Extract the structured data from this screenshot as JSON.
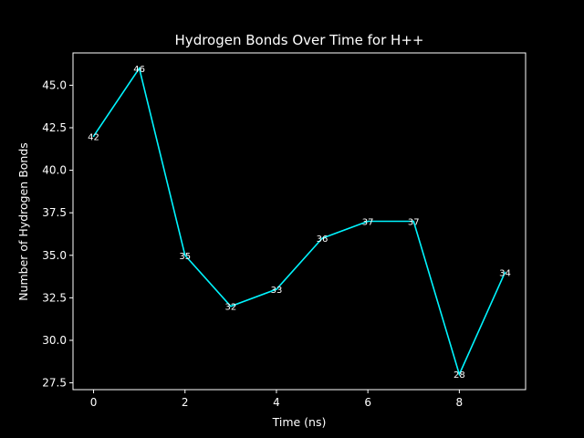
{
  "colors": {
    "background": "#000000",
    "foreground": "#ffffff",
    "line": "#00f5ff"
  },
  "chart_data": {
    "type": "line",
    "title": "Hydrogen Bonds Over Time for H++",
    "xlabel": "Time (ns)",
    "ylabel": "Number of Hydrogen Bonds",
    "x": [
      0,
      1,
      2,
      3,
      4,
      5,
      6,
      7,
      8,
      9
    ],
    "series": [
      {
        "values": [
          42,
          46,
          35,
          32,
          33,
          36,
          37,
          37,
          28,
          34
        ]
      }
    ],
    "data_labels": [
      "42",
      "46",
      "35",
      "32",
      "33",
      "36",
      "37",
      "37",
      "28",
      "34"
    ],
    "xlim": [
      -0.45,
      9.45
    ],
    "ylim": [
      27.1,
      46.9
    ],
    "xticks": [
      0,
      2,
      4,
      6,
      8
    ],
    "xtick_labels": [
      "0",
      "2",
      "4",
      "6",
      "8"
    ],
    "yticks": [
      27.5,
      30.0,
      32.5,
      35.0,
      37.5,
      40.0,
      42.5,
      45.0
    ],
    "ytick_labels": [
      "27.5",
      "30.0",
      "32.5",
      "35.0",
      "37.5",
      "40.0",
      "42.5",
      "45.0"
    ],
    "grid": false,
    "legend": "none"
  }
}
